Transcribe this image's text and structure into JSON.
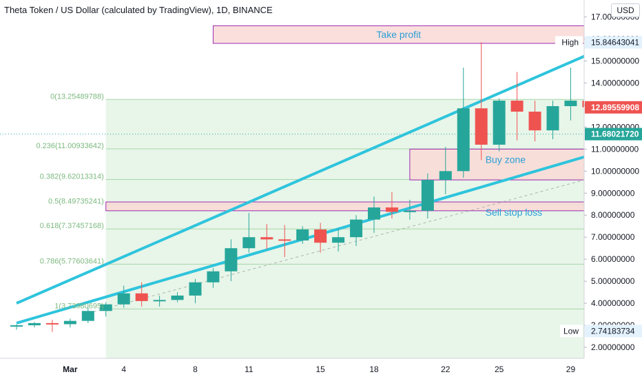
{
  "header": {
    "title": "Theta Token / US Dollar (calculated by TradingView), 1D, BINANCE",
    "currency": "USD"
  },
  "colors": {
    "up": "#26a69a",
    "down": "#ef5350",
    "trendline": "#2ec4dc",
    "fib_line": "#a5d6a7",
    "fib_fill": "#e8f5e9",
    "box_fill": "#f9d9d6",
    "box_border": "#9c27b0",
    "annotation_text": "#2a9fd6",
    "high_label_bg": "#e3f2fd",
    "price_red": "#ef5350",
    "price_green": "#26a69a"
  },
  "chart_data": {
    "type": "candlestick",
    "ylim": [
      1.5,
      17.3
    ],
    "y_ticks": [
      "2.00000000",
      "3.00000000",
      "4.00000000",
      "5.00000000",
      "6.00000000",
      "7.00000000",
      "8.00000000",
      "9.00000000",
      "10.00000000",
      "11.00000000",
      "12.00000000",
      "13.00000000",
      "14.00000000",
      "15.00000000",
      "16.00000000",
      "17.00000000"
    ],
    "x_labels": [
      {
        "label": "Mar",
        "date": "2021-03-01"
      },
      {
        "label": "4",
        "date": "2021-03-04"
      },
      {
        "label": "8",
        "date": "2021-03-08"
      },
      {
        "label": "11",
        "date": "2021-03-11"
      },
      {
        "label": "15",
        "date": "2021-03-15"
      },
      {
        "label": "18",
        "date": "2021-03-18"
      },
      {
        "label": "22",
        "date": "2021-03-22"
      },
      {
        "label": "25",
        "date": "2021-03-25"
      },
      {
        "label": "29",
        "date": "2021-03-29"
      }
    ],
    "candles": [
      {
        "date": "2021-02-26",
        "o": 2.95,
        "h": 3.05,
        "l": 2.8,
        "c": 3.0
      },
      {
        "date": "2021-02-27",
        "o": 3.0,
        "h": 3.15,
        "l": 2.9,
        "c": 3.1
      },
      {
        "date": "2021-02-28",
        "o": 3.1,
        "h": 3.25,
        "l": 2.7,
        "c": 3.05
      },
      {
        "date": "2021-03-01",
        "o": 3.05,
        "h": 3.3,
        "l": 2.9,
        "c": 3.2
      },
      {
        "date": "2021-03-02",
        "o": 3.2,
        "h": 3.8,
        "l": 3.1,
        "c": 3.65
      },
      {
        "date": "2021-03-03",
        "o": 3.65,
        "h": 4.05,
        "l": 3.4,
        "c": 3.95
      },
      {
        "date": "2021-03-04",
        "o": 3.95,
        "h": 4.8,
        "l": 3.8,
        "c": 4.45
      },
      {
        "date": "2021-03-05",
        "o": 4.45,
        "h": 4.95,
        "l": 3.85,
        "c": 4.1
      },
      {
        "date": "2021-03-06",
        "o": 4.1,
        "h": 4.35,
        "l": 3.85,
        "c": 4.15
      },
      {
        "date": "2021-03-07",
        "o": 4.15,
        "h": 4.5,
        "l": 4.05,
        "c": 4.35
      },
      {
        "date": "2021-03-08",
        "o": 4.35,
        "h": 5.1,
        "l": 4.0,
        "c": 4.95
      },
      {
        "date": "2021-03-09",
        "o": 4.95,
        "h": 5.6,
        "l": 4.7,
        "c": 5.45
      },
      {
        "date": "2021-03-10",
        "o": 5.45,
        "h": 6.9,
        "l": 5.0,
        "c": 6.5
      },
      {
        "date": "2021-03-11",
        "o": 6.5,
        "h": 8.1,
        "l": 6.3,
        "c": 7.0
      },
      {
        "date": "2021-03-12",
        "o": 7.0,
        "h": 7.6,
        "l": 6.45,
        "c": 6.9
      },
      {
        "date": "2021-03-13",
        "o": 6.9,
        "h": 7.55,
        "l": 6.1,
        "c": 6.85
      },
      {
        "date": "2021-03-14",
        "o": 6.85,
        "h": 7.5,
        "l": 6.7,
        "c": 7.35
      },
      {
        "date": "2021-03-15",
        "o": 7.35,
        "h": 7.65,
        "l": 6.3,
        "c": 6.75
      },
      {
        "date": "2021-03-16",
        "o": 6.75,
        "h": 7.4,
        "l": 6.35,
        "c": 7.0
      },
      {
        "date": "2021-03-17",
        "o": 7.0,
        "h": 8.0,
        "l": 6.6,
        "c": 7.8
      },
      {
        "date": "2021-03-18",
        "o": 7.8,
        "h": 8.85,
        "l": 7.2,
        "c": 8.35
      },
      {
        "date": "2021-03-19",
        "o": 8.35,
        "h": 9.05,
        "l": 7.85,
        "c": 8.15
      },
      {
        "date": "2021-03-20",
        "o": 8.15,
        "h": 8.7,
        "l": 7.8,
        "c": 8.2
      },
      {
        "date": "2021-03-21",
        "o": 8.2,
        "h": 9.9,
        "l": 7.85,
        "c": 9.6
      },
      {
        "date": "2021-03-22",
        "o": 9.6,
        "h": 11.1,
        "l": 8.95,
        "c": 10.0
      },
      {
        "date": "2021-03-23",
        "o": 10.0,
        "h": 14.7,
        "l": 9.7,
        "c": 12.85
      },
      {
        "date": "2021-03-24",
        "o": 12.85,
        "h": 15.85,
        "l": 10.5,
        "c": 11.2
      },
      {
        "date": "2021-03-25",
        "o": 11.2,
        "h": 13.3,
        "l": 10.9,
        "c": 13.2
      },
      {
        "date": "2021-03-26",
        "o": 13.2,
        "h": 14.5,
        "l": 11.4,
        "c": 12.7
      },
      {
        "date": "2021-03-27",
        "o": 12.7,
        "h": 13.2,
        "l": 11.35,
        "c": 11.85
      },
      {
        "date": "2021-03-28",
        "o": 11.85,
        "h": 13.2,
        "l": 11.45,
        "c": 12.95
      },
      {
        "date": "2021-03-29",
        "o": 12.95,
        "h": 14.7,
        "l": 12.3,
        "c": 13.2
      },
      {
        "date": "2021-03-30",
        "o": 13.2,
        "h": 13.75,
        "l": 12.3,
        "c": 12.9
      }
    ],
    "fibonacci": {
      "from_date": "2021-03-03",
      "levels": [
        {
          "label": "0(13.25489788)",
          "value": 13.25489788
        },
        {
          "label": "0.236(11.00933642)",
          "value": 11.00933642
        },
        {
          "label": "0.382(9.62013314)",
          "value": 9.62013314
        },
        {
          "label": "0.5(8.49735241)",
          "value": 8.49735241
        },
        {
          "label": "0.618(7.37457168)",
          "value": 7.37457168
        },
        {
          "label": "0.786(5.77603641)",
          "value": 5.77603641
        },
        {
          "label": "1(3.73980695)",
          "value": 3.73980695
        }
      ]
    },
    "zones": [
      {
        "label": "Take profit",
        "top": 16.6,
        "bottom": 15.8,
        "from_date": "2021-03-09",
        "to_date": "2021-03-31"
      },
      {
        "label": "Buy zone",
        "top": 11.0,
        "bottom": 9.6,
        "from_date": "2021-03-20",
        "to_date": "2021-03-31"
      },
      {
        "label": "Sell stop loss",
        "top": 8.6,
        "bottom": 8.2,
        "from_date": "2021-03-03",
        "to_date": "2021-03-31"
      }
    ],
    "trendlines": [
      {
        "name": "upper",
        "p1": {
          "date": "2021-02-26",
          "y": 4.0
        },
        "p2": {
          "date": "2021-03-30",
          "y": 15.3
        },
        "style": "solid"
      },
      {
        "name": "lower",
        "p1": {
          "date": "2021-02-26",
          "y": 3.1
        },
        "p2": {
          "date": "2021-03-30",
          "y": 10.7
        },
        "style": "solid"
      },
      {
        "name": "dashed",
        "p1": {
          "date": "2021-03-02",
          "y": 3.55
        },
        "p2": {
          "date": "2021-03-30",
          "y": 9.65
        },
        "style": "dashed"
      }
    ],
    "price_labels": {
      "high": {
        "label": "High",
        "value_text": "15.84643041",
        "value": 15.84643041
      },
      "last": {
        "value_text": "12.89559908",
        "value": 12.89559908
      },
      "level": {
        "value_text": "11.68021720",
        "value": 11.6802172
      },
      "low": {
        "label": "Low",
        "value_text": "2.74183734",
        "value": 2.74183734
      }
    }
  }
}
